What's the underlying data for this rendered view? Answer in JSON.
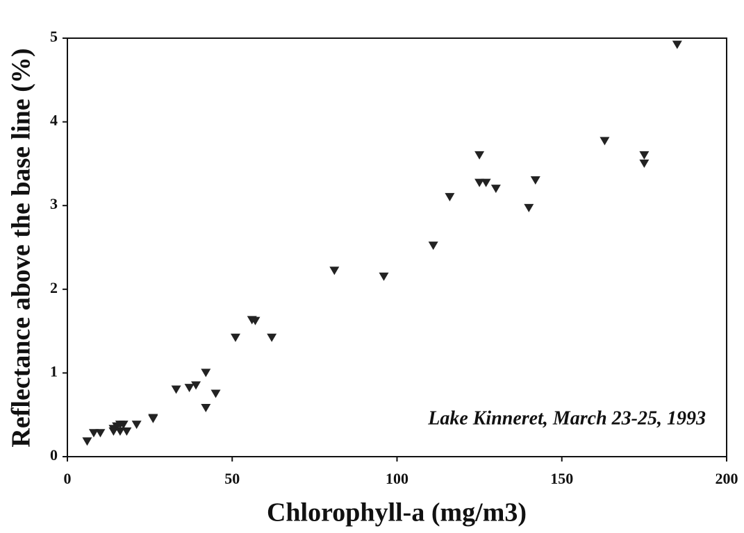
{
  "chart_data": {
    "type": "scatter",
    "xlabel": "Chlorophyll-a (mg/m3)",
    "ylabel": "Reflectance above the base line (%)",
    "annotation": "Lake Kinneret, March 23-25, 1993",
    "color": "#222222",
    "x": [
      6,
      8,
      10,
      14,
      14,
      15,
      16,
      16,
      17,
      18,
      21,
      26,
      26,
      33,
      37,
      39,
      42,
      42,
      45,
      51,
      56,
      57,
      62,
      81,
      96,
      111,
      116,
      125,
      125,
      127,
      130,
      140,
      142,
      163,
      175,
      175,
      185
    ],
    "values": [
      0.18,
      0.28,
      0.28,
      0.33,
      0.3,
      0.36,
      0.38,
      0.3,
      0.38,
      0.3,
      0.38,
      0.45,
      0.46,
      0.8,
      0.82,
      0.85,
      1.0,
      0.58,
      0.75,
      1.42,
      1.63,
      1.62,
      1.42,
      2.22,
      2.15,
      2.52,
      3.1,
      3.6,
      3.27,
      3.27,
      3.2,
      2.97,
      3.3,
      3.77,
      3.6,
      3.5,
      4.92
    ],
    "xlim": [
      0,
      200
    ],
    "xticks": [
      0,
      50,
      100,
      150,
      200
    ],
    "ylim": [
      0,
      5
    ],
    "yticks": [
      0,
      1,
      2,
      3,
      4,
      5
    ]
  }
}
